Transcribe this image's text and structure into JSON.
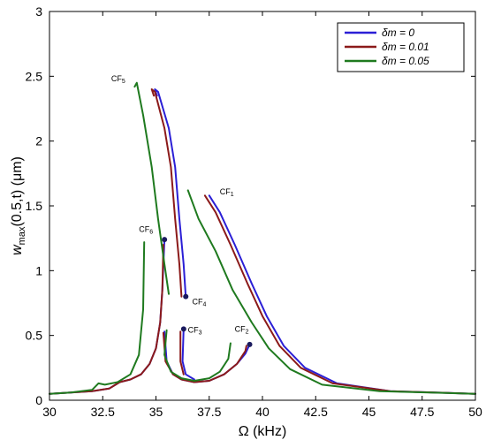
{
  "chart_data": {
    "type": "line",
    "xlabel": "Ω (kHz)",
    "ylabel_main": "w",
    "ylabel_sub": "max",
    "ylabel_rest": "(0.5,t) (μm)",
    "xlim": [
      30,
      50
    ],
    "ylim": [
      0,
      3
    ],
    "xticks": [
      "30",
      "32.5",
      "35",
      "37.5",
      "40",
      "42.5",
      "45",
      "47.5",
      "50"
    ],
    "xtick_values": [
      30,
      32.5,
      35,
      37.5,
      40,
      42.5,
      45,
      47.5,
      50
    ],
    "yticks": [
      "0",
      "0.5",
      "1",
      "1.5",
      "2",
      "2.5",
      "3"
    ],
    "ytick_values": [
      0,
      0.5,
      1,
      1.5,
      2,
      2.5,
      3
    ],
    "grid": false,
    "legend_position": "top-right",
    "legend": [
      {
        "label": "δm = 0",
        "color": "#2b1fd6"
      },
      {
        "label": "δm = 0.01",
        "color": "#8b1a1a"
      },
      {
        "label": "δm = 0.05",
        "color": "#1f7a1f"
      }
    ],
    "series": [
      {
        "name": "δm = 0",
        "color": "#2b1fd6",
        "branches": [
          [
            [
              30,
              0.05
            ],
            [
              31,
              0.06
            ],
            [
              32,
              0.07
            ],
            [
              32.8,
              0.09
            ],
            [
              33.3,
              0.14
            ],
            [
              33.8,
              0.16
            ],
            [
              34.3,
              0.2
            ],
            [
              34.7,
              0.28
            ],
            [
              35.0,
              0.4
            ],
            [
              35.2,
              0.6
            ],
            [
              35.3,
              0.85
            ],
            [
              35.4,
              1.24
            ]
          ],
          [
            [
              35.4,
              0.53
            ],
            [
              35.5,
              0.3
            ],
            [
              35.8,
              0.2
            ],
            [
              36.2,
              0.16
            ],
            [
              36.8,
              0.14
            ],
            [
              37.5,
              0.15
            ],
            [
              38.2,
              0.2
            ],
            [
              38.8,
              0.28
            ],
            [
              39.2,
              0.36
            ],
            [
              39.4,
              0.43
            ]
          ],
          [
            [
              36.3,
              0.55
            ],
            [
              36.25,
              0.3
            ],
            [
              36.4,
              0.2
            ],
            [
              36.8,
              0.16
            ]
          ],
          [
            [
              36.4,
              0.8
            ],
            [
              36.3,
              1.05
            ],
            [
              36.1,
              1.4
            ],
            [
              35.9,
              1.8
            ],
            [
              35.6,
              2.1
            ],
            [
              35.1,
              2.38
            ],
            [
              34.95,
              2.4
            ],
            [
              35.05,
              2.35
            ]
          ],
          [
            [
              37.5,
              1.58
            ],
            [
              38.0,
              1.45
            ],
            [
              38.7,
              1.2
            ],
            [
              39.5,
              0.9
            ],
            [
              40.2,
              0.65
            ],
            [
              41.0,
              0.42
            ],
            [
              42.0,
              0.25
            ],
            [
              43.5,
              0.13
            ],
            [
              46,
              0.07
            ],
            [
              50,
              0.05
            ]
          ]
        ],
        "endpoints": [
          [
            35.4,
            1.24
          ],
          [
            36.4,
            0.8
          ],
          [
            36.3,
            0.55
          ],
          [
            39.4,
            0.43
          ]
        ]
      },
      {
        "name": "δm = 0.01",
        "color": "#8b1a1a",
        "branches": [
          [
            [
              30,
              0.05
            ],
            [
              31,
              0.06
            ],
            [
              32,
              0.07
            ],
            [
              32.8,
              0.09
            ],
            [
              33.3,
              0.14
            ],
            [
              33.8,
              0.16
            ],
            [
              34.3,
              0.2
            ],
            [
              34.7,
              0.28
            ],
            [
              35.0,
              0.4
            ],
            [
              35.2,
              0.6
            ],
            [
              35.3,
              0.85
            ],
            [
              35.35,
              1.2
            ]
          ],
          [
            [
              35.35,
              0.52
            ],
            [
              35.45,
              0.3
            ],
            [
              35.8,
              0.2
            ],
            [
              36.2,
              0.16
            ],
            [
              36.8,
              0.14
            ],
            [
              37.5,
              0.15
            ],
            [
              38.2,
              0.2
            ],
            [
              38.8,
              0.28
            ],
            [
              39.2,
              0.38
            ],
            [
              39.25,
              0.42
            ]
          ],
          [
            [
              36.15,
              0.53
            ],
            [
              36.15,
              0.3
            ],
            [
              36.3,
              0.2
            ]
          ],
          [
            [
              36.2,
              0.8
            ],
            [
              36.1,
              1.05
            ],
            [
              35.9,
              1.4
            ],
            [
              35.7,
              1.8
            ],
            [
              35.4,
              2.1
            ],
            [
              34.95,
              2.38
            ],
            [
              34.8,
              2.4
            ],
            [
              34.9,
              2.35
            ]
          ],
          [
            [
              37.3,
              1.58
            ],
            [
              37.8,
              1.45
            ],
            [
              38.5,
              1.2
            ],
            [
              39.3,
              0.9
            ],
            [
              40.0,
              0.65
            ],
            [
              40.8,
              0.42
            ],
            [
              41.8,
              0.25
            ],
            [
              43.3,
              0.13
            ],
            [
              46,
              0.07
            ],
            [
              50,
              0.05
            ]
          ]
        ],
        "endpoints": []
      },
      {
        "name": "δm = 0.05",
        "color": "#1f7a1f",
        "branches": [
          [
            [
              30,
              0.05
            ],
            [
              31,
              0.06
            ],
            [
              32,
              0.08
            ],
            [
              32.3,
              0.13
            ],
            [
              32.6,
              0.12
            ],
            [
              33.2,
              0.14
            ],
            [
              33.8,
              0.2
            ],
            [
              34.2,
              0.35
            ],
            [
              34.4,
              0.7
            ],
            [
              34.45,
              1.22
            ]
          ],
          [
            [
              35.5,
              0.54
            ],
            [
              35.4,
              0.35
            ],
            [
              35.7,
              0.22
            ],
            [
              36.2,
              0.17
            ],
            [
              36.8,
              0.15
            ],
            [
              37.5,
              0.17
            ],
            [
              38.0,
              0.22
            ],
            [
              38.4,
              0.32
            ],
            [
              38.5,
              0.44
            ]
          ],
          [
            [
              35.6,
              0.82
            ],
            [
              35.4,
              1.05
            ],
            [
              35.1,
              1.4
            ],
            [
              34.8,
              1.8
            ],
            [
              34.4,
              2.2
            ],
            [
              34.1,
              2.45
            ],
            [
              34.0,
              2.42
            ]
          ],
          [
            [
              36.5,
              1.62
            ],
            [
              37.0,
              1.4
            ],
            [
              37.8,
              1.15
            ],
            [
              38.6,
              0.85
            ],
            [
              39.5,
              0.6
            ],
            [
              40.3,
              0.4
            ],
            [
              41.3,
              0.24
            ],
            [
              42.8,
              0.12
            ],
            [
              45.5,
              0.07
            ],
            [
              50,
              0.05
            ]
          ]
        ],
        "endpoints": []
      }
    ],
    "annotations": [
      {
        "base": "CF",
        "sub": "1",
        "x": 38.0,
        "y": 1.59
      },
      {
        "base": "CF",
        "sub": "2",
        "x": 38.7,
        "y": 0.53
      },
      {
        "base": "CF",
        "sub": "3",
        "x": 36.5,
        "y": 0.52
      },
      {
        "base": "CF",
        "sub": "4",
        "x": 36.7,
        "y": 0.74
      },
      {
        "base": "CF",
        "sub": "5",
        "x": 32.9,
        "y": 2.46
      },
      {
        "base": "CF",
        "sub": "6",
        "x": 34.2,
        "y": 1.3
      }
    ]
  }
}
